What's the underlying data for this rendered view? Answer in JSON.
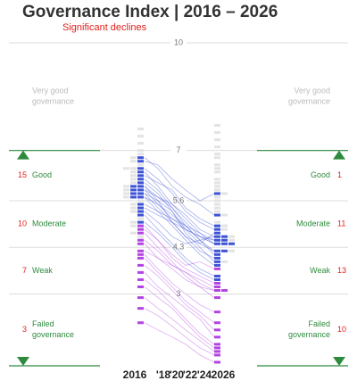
{
  "chart_data": {
    "type": "slope",
    "title": "Governance Index | 2016 – 2026",
    "subtitle": "Significant declines",
    "categories": [
      "2016",
      "'18",
      "'20",
      "'22",
      "'24",
      "2026"
    ],
    "ylim": [
      1,
      10
    ],
    "yticks": [
      10,
      7,
      5.6,
      4.3,
      3
    ],
    "grid": true,
    "marker_color": "#2e8b3e",
    "marker_up": 7,
    "marker_down": 1,
    "other_color": "#e3e3e3",
    "bands": [
      {
        "label": [
          "Very good",
          "governance"
        ]
      },
      {
        "label": [
          "Good"
        ],
        "count_2016": 15,
        "count_2026": 1
      },
      {
        "label": [
          "Moderate"
        ],
        "count_2016": 10,
        "count_2026": 11
      },
      {
        "label": [
          "Weak"
        ],
        "count_2016": 7,
        "count_2026": 13
      },
      {
        "label": [
          "Failed",
          "governance"
        ],
        "count_2016": 3,
        "count_2026": 10
      }
    ],
    "others_2016": [
      7.6,
      7.4,
      7.2,
      7.0,
      6.9,
      6.8,
      6.7,
      6.6,
      6.5,
      6.5,
      6.4,
      6.3,
      6.2,
      6.1,
      6.0,
      5.9,
      5.8,
      5.7,
      5.6,
      5.5,
      5.4,
      5.3,
      5.1,
      5.0,
      4.9,
      4.7,
      4.6
    ],
    "others_2026": [
      7.7,
      7.5,
      7.3,
      7.1,
      6.9,
      6.8,
      6.6,
      6.5,
      6.4,
      6.2,
      6.1,
      6.0,
      5.9,
      5.8,
      5.7,
      5.6,
      5.5,
      5.4,
      5.3,
      5.2,
      5.0,
      4.9,
      4.8,
      4.6,
      4.5,
      4.2,
      3.9
    ],
    "series": [
      {
        "color": "#3d52d5",
        "values": [
          6.8,
          6.5,
          6.0,
          5.7,
          5.5,
          5.2
        ]
      },
      {
        "color": "#3d52d5",
        "values": [
          6.7,
          6.6,
          6.2,
          5.9,
          5.6,
          5.8
        ]
      },
      {
        "color": "#3d52d5",
        "values": [
          6.5,
          6.2,
          5.8,
          5.3,
          5.0,
          4.8
        ]
      },
      {
        "color": "#3d52d5",
        "values": [
          6.4,
          6.0,
          5.5,
          5.1,
          4.7,
          4.4
        ]
      },
      {
        "color": "#3d52d5",
        "values": [
          6.3,
          6.1,
          5.9,
          5.4,
          5.1,
          4.9
        ]
      },
      {
        "color": "#3d52d5",
        "values": [
          6.2,
          5.9,
          5.4,
          4.9,
          4.5,
          4.2
        ]
      },
      {
        "color": "#3d52d5",
        "values": [
          6.1,
          5.8,
          5.3,
          4.8,
          4.6,
          4.5
        ]
      },
      {
        "color": "#3d52d5",
        "values": [
          6.0,
          5.7,
          5.5,
          5.2,
          4.8,
          4.6
        ]
      },
      {
        "color": "#3d52d5",
        "values": [
          6.0,
          5.6,
          5.0,
          4.6,
          4.2,
          4.0
        ]
      },
      {
        "color": "#3d52d5",
        "values": [
          5.9,
          5.7,
          5.4,
          5.0,
          4.6,
          4.4
        ]
      },
      {
        "color": "#3d52d5",
        "values": [
          5.9,
          5.5,
          5.2,
          4.9,
          4.5,
          4.1
        ]
      },
      {
        "color": "#3d52d5",
        "values": [
          5.8,
          5.6,
          5.3,
          4.7,
          4.3,
          3.9
        ]
      },
      {
        "color": "#3d52d5",
        "values": [
          5.8,
          5.4,
          5.0,
          4.6,
          4.4,
          4.7
        ]
      },
      {
        "color": "#3d52d5",
        "values": [
          5.7,
          5.5,
          5.1,
          4.8,
          4.4,
          4.2
        ]
      },
      {
        "color": "#3d52d5",
        "values": [
          5.7,
          5.3,
          4.9,
          4.5,
          4.1,
          3.8
        ]
      },
      {
        "color": "#3d52d5",
        "values": [
          5.5,
          5.3,
          5.1,
          4.9,
          4.7,
          4.5
        ]
      },
      {
        "color": "#3d52d5",
        "values": [
          5.4,
          5.2,
          5.0,
          4.8,
          4.6,
          4.4
        ]
      },
      {
        "color": "#3d52d5",
        "values": [
          5.3,
          5.0,
          4.6,
          4.4,
          4.5,
          4.6
        ]
      },
      {
        "color": "#3d52d5",
        "values": [
          5.2,
          4.8,
          4.4,
          4.0,
          3.7,
          3.5
        ]
      },
      {
        "color": "#3d52d5",
        "values": [
          5.0,
          4.7,
          4.3,
          3.9,
          3.6,
          3.4
        ]
      },
      {
        "color": "#b344e2",
        "values": [
          4.9,
          4.5,
          4.0,
          3.7,
          3.5,
          3.3
        ]
      },
      {
        "color": "#b344e2",
        "values": [
          4.8,
          4.5,
          4.1,
          3.8,
          3.9,
          3.7
        ]
      },
      {
        "color": "#b344e2",
        "values": [
          4.7,
          4.3,
          3.9,
          3.5,
          3.2,
          2.9
        ]
      },
      {
        "color": "#b344e2",
        "values": [
          4.5,
          4.2,
          3.8,
          3.6,
          3.3,
          3.1
        ]
      },
      {
        "color": "#b344e2",
        "values": [
          4.4,
          4.0,
          3.7,
          3.4,
          3.2,
          3.1
        ]
      },
      {
        "color": "#b344e2",
        "values": [
          4.2,
          4.0,
          3.8,
          3.6,
          3.4,
          3.2
        ]
      },
      {
        "color": "#b344e2",
        "values": [
          4.1,
          3.7,
          3.3,
          3.0,
          2.7,
          2.5
        ]
      },
      {
        "color": "#b344e2",
        "values": [
          4.0,
          3.6,
          3.2,
          2.8,
          2.5,
          2.2
        ]
      },
      {
        "color": "#b344e2",
        "values": [
          3.8,
          3.5,
          3.1,
          2.7,
          2.4,
          2.0
        ]
      },
      {
        "color": "#b344e2",
        "values": [
          3.6,
          3.2,
          2.9,
          2.6,
          2.3,
          1.8
        ]
      },
      {
        "color": "#b344e2",
        "values": [
          3.4,
          3.1,
          2.7,
          2.3,
          1.9,
          1.6
        ]
      },
      {
        "color": "#b344e2",
        "values": [
          3.2,
          2.9,
          2.6,
          2.2,
          1.8,
          1.5
        ]
      },
      {
        "color": "#b344e2",
        "values": [
          2.9,
          2.6,
          2.3,
          2.0,
          1.7,
          1.4
        ]
      },
      {
        "color": "#b344e2",
        "values": [
          2.6,
          2.4,
          2.1,
          1.8,
          1.5,
          1.3
        ]
      },
      {
        "color": "#b344e2",
        "values": [
          2.2,
          2.0,
          1.8,
          1.6,
          1.3,
          1.1
        ]
      }
    ]
  }
}
